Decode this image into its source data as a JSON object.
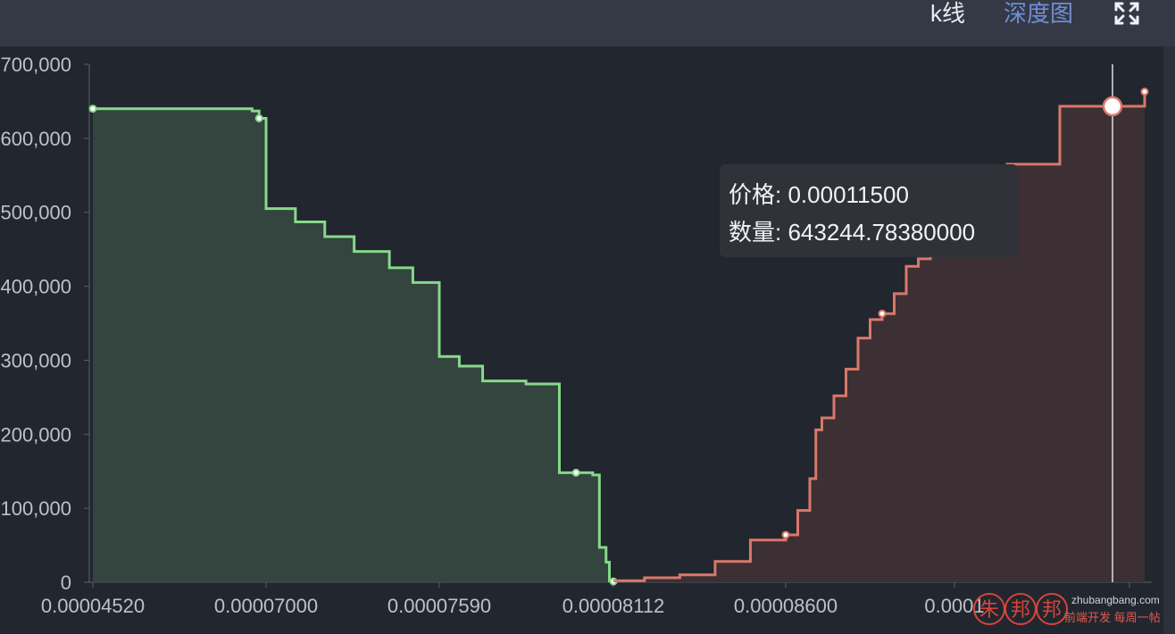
{
  "header": {
    "tabs": [
      {
        "label": "k线",
        "active": false
      },
      {
        "label": "深度图",
        "active": true
      }
    ],
    "fullscreen_icon": "fullscreen-icon"
  },
  "tooltip": {
    "price_label": "价格:",
    "price_value": "0.00011500",
    "amount_label": "数量:",
    "amount_value": "643244.78380000"
  },
  "watermark": {
    "chars": [
      "朱",
      "邦",
      "邦"
    ],
    "site": "zhubangbang.com",
    "slogan": "前端开发 每周一帖"
  },
  "colors": {
    "background": "#22262f",
    "bid": "#86d98a",
    "bid_fill": "#34443f",
    "ask": "#d9786a",
    "ask_fill": "#3c3035",
    "active_tab": "#6f8fd6"
  },
  "chart_data": {
    "type": "area",
    "title": "",
    "xlabel": "",
    "ylabel": "",
    "ylim": [
      0,
      700000
    ],
    "y_ticks": [
      "700,000",
      "600,000",
      "500,000",
      "400,000",
      "300,000",
      "200,000",
      "100,000",
      "0"
    ],
    "x_ticks": [
      "0.00004520",
      "0.00007000",
      "0.00007590",
      "0.00008112",
      "0.00008600",
      "0.0001"
    ],
    "grid": false,
    "series": [
      {
        "side": "bid",
        "points": [
          [
            4.52e-05,
            640000
          ],
          [
            6.8e-05,
            637000
          ],
          [
            6.9e-05,
            627000
          ],
          [
            7e-05,
            505000
          ],
          [
            7.1e-05,
            487000
          ],
          [
            7.2e-05,
            467000
          ],
          [
            7.3e-05,
            447000
          ],
          [
            7.42e-05,
            425000
          ],
          [
            7.5e-05,
            405000
          ],
          [
            7.59e-05,
            305000
          ],
          [
            7.65e-05,
            292000
          ],
          [
            7.72e-05,
            272000
          ],
          [
            7.85e-05,
            268000
          ],
          [
            7.95e-05,
            148000
          ],
          [
            8e-05,
            148000
          ],
          [
            8.05e-05,
            145000
          ],
          [
            8.07e-05,
            47000
          ],
          [
            8.09e-05,
            27000
          ],
          [
            8.1e-05,
            2000
          ],
          [
            8.112e-05,
            1000
          ]
        ]
      },
      {
        "side": "ask",
        "points": [
          [
            8.112e-05,
            2000
          ],
          [
            8.2e-05,
            6000
          ],
          [
            8.3e-05,
            10000
          ],
          [
            8.4e-05,
            28000
          ],
          [
            8.5e-05,
            57000
          ],
          [
            8.6e-05,
            64000
          ],
          [
            8.7e-05,
            97000
          ],
          [
            8.8e-05,
            140000
          ],
          [
            8.85e-05,
            206000
          ],
          [
            8.9e-05,
            222000
          ],
          [
            9e-05,
            252000
          ],
          [
            9.1e-05,
            288000
          ],
          [
            9.2e-05,
            330000
          ],
          [
            9.3e-05,
            355000
          ],
          [
            9.4e-05,
            363000
          ],
          [
            9.5e-05,
            390000
          ],
          [
            9.6e-05,
            427000
          ],
          [
            9.7e-05,
            437000
          ],
          [
            9.8e-05,
            448000
          ],
          [
            9.9e-05,
            460000
          ],
          [
            0.000105,
            565000
          ],
          [
            0.00011,
            643245
          ],
          [
            0.000115,
            643245
          ],
          [
            0.000118,
            663000
          ]
        ]
      }
    ],
    "cursor": {
      "price": 0.000115,
      "amount": 643244.7838
    }
  }
}
